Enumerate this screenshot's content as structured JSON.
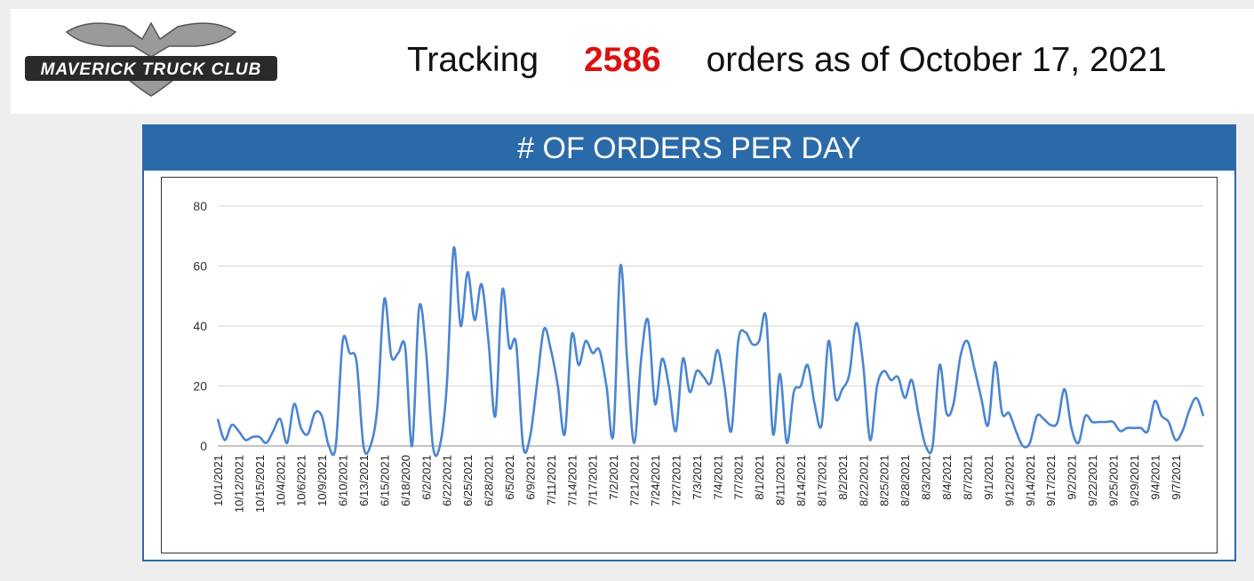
{
  "header": {
    "logo_text": "MAVERICK TRUCK CLUB",
    "tracking_prefix": "Tracking",
    "tracking_count": "2586",
    "tracking_suffix": "orders as of October 17, 2021"
  },
  "colors": {
    "accent": "#2b6aa8",
    "line": "#4a86d0",
    "highlight": "#dd1111"
  },
  "chart_data": {
    "type": "line",
    "title": "# OF ORDERS PER DAY",
    "xlabel": "",
    "ylabel": "",
    "ylim": [
      0,
      80
    ],
    "yticks": [
      0,
      20,
      40,
      60,
      80
    ],
    "grid": true,
    "tick_labels": [
      "10/1/2021",
      "10/12/2021",
      "10/15/2021",
      "10/4/2021",
      "10/6/2021",
      "10/9/2021",
      "6/10/2021",
      "6/13/2021",
      "6/15/2021",
      "6/18/2020",
      "6/2/2021",
      "6/22/2021",
      "6/25/2021",
      "6/28/2021",
      "6/5/2021",
      "6/9/2021",
      "7/11/2021",
      "7/14/2021",
      "7/17/2021",
      "7/2/2021",
      "7/21/2021",
      "7/24/2021",
      "7/27/2021",
      "7/3/2021",
      "7/4/2021",
      "7/7/2021",
      "8/1/2021",
      "8/11/2021",
      "8/14/2021",
      "8/17/2021",
      "8/2/2021",
      "8/22/2021",
      "8/25/2021",
      "8/28/2021",
      "8/3/2021",
      "8/4/2021",
      "8/7/2021",
      "9/1/2021",
      "9/12/2021",
      "9/14/2021",
      "9/17/2021",
      "9/2/2021",
      "9/22/2021",
      "9/25/2021",
      "9/29/2021",
      "9/4/2021",
      "9/7/2021"
    ],
    "points_per_tick": 3,
    "values": [
      9,
      2,
      7,
      5,
      2,
      3,
      3,
      1,
      5,
      9,
      1,
      14,
      6,
      4,
      11,
      10,
      0,
      0,
      35,
      31,
      28,
      0,
      0,
      13,
      49,
      30,
      31,
      33,
      0,
      46,
      32,
      0,
      0,
      20,
      66,
      40,
      58,
      42,
      54,
      35,
      10,
      52,
      33,
      34,
      0,
      3,
      21,
      39,
      32,
      20,
      4,
      37,
      27,
      35,
      31,
      32,
      20,
      4,
      60,
      28,
      1,
      29,
      42,
      14,
      29,
      20,
      5,
      29,
      18,
      25,
      23,
      21,
      32,
      20,
      5,
      35,
      38,
      34,
      35,
      43,
      4,
      24,
      1,
      18,
      20,
      27,
      14,
      7,
      35,
      16,
      19,
      24,
      41,
      27,
      2,
      20,
      25,
      22,
      23,
      16,
      22,
      10,
      0,
      0,
      27,
      11,
      14,
      30,
      35,
      26,
      16,
      7,
      28,
      11,
      11,
      5,
      0,
      1,
      10,
      9,
      7,
      8,
      19,
      6,
      1,
      10,
      8,
      8,
      8,
      8,
      5,
      6,
      6,
      6,
      5,
      15,
      10,
      8,
      2,
      5,
      12,
      16,
      10
    ]
  }
}
